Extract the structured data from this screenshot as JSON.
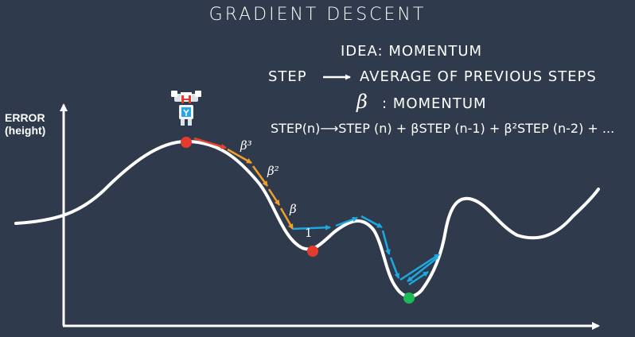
{
  "title": "GRADIENT DESCENT",
  "idea": "IDEA: MOMENTUM",
  "step_line": {
    "lhs": "STEP",
    "rhs": "AVERAGE OF PREVIOUS STEPS"
  },
  "beta_line": {
    "symbol": "β",
    "text": ": MOMENTUM"
  },
  "formula": "STEP(n)⟶STEP (n) + βSTEP (n-1) + β²STEP (n-2) + ...",
  "y_axis_label": [
    "ERROR",
    "(height)"
  ],
  "step_labels": {
    "b3": "β³",
    "b2": "β²",
    "b1": "β",
    "one": "1"
  },
  "colors": {
    "background": "#2f3a4c",
    "curve": "#ffffff",
    "start_point": "#e53b2f",
    "local_min": "#e53b2f",
    "global_min": "#1db954",
    "arrow_red": "#e5412d",
    "arrow_orange": "#f0a028",
    "arrow_blue": "#1fa8e0"
  }
}
